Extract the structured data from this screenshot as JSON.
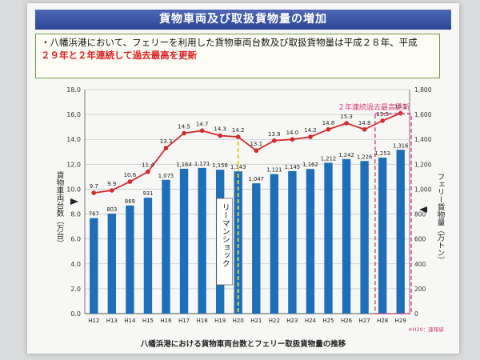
{
  "header": {
    "title": "貨物車両及び取扱貨物量の増加"
  },
  "description": {
    "line1": "・八幡浜港において、フェリーを利用した貨物車両台数及び取扱貨物量は平成２８年、平成",
    "line2_highlight": "２９年と２年連続して過去最高を更新",
    "line2_tail": ""
  },
  "chart_data": {
    "type": "bar",
    "title": "八幡浜港における貨物車両台数とフェリー取扱貨物量の推移",
    "categories": [
      "H12",
      "H13",
      "H14",
      "H15",
      "H16",
      "H17",
      "H18",
      "H19",
      "H20",
      "H21",
      "H22",
      "H23",
      "H24",
      "H25",
      "H26",
      "H27",
      "H28",
      "H29"
    ],
    "series": [
      {
        "type": "bar",
        "axis": "left",
        "color": "#1f6fb8",
        "values": [
          767,
          803,
          869,
          931,
          1075,
          1164,
          1171,
          1156,
          1143,
          1047,
          1121,
          1145,
          1162,
          1212,
          1242,
          1226,
          1253,
          1316
        ]
      },
      {
        "type": "line",
        "axis": "right",
        "color": "#d42a2a",
        "values": [
          9.7,
          9.9,
          10.6,
          11.4,
          13.3,
          14.5,
          14.7,
          14.3,
          14.2,
          13.1,
          13.9,
          14.0,
          14.2,
          14.8,
          15.3,
          14.8,
          15.5,
          16.1
        ]
      }
    ],
    "y_left": {
      "label": "貨物車両台数（万台）",
      "ylim": [
        0,
        18
      ],
      "ticks": [
        "0.0",
        "2.0",
        "4.0",
        "6.0",
        "8.0",
        "10.0",
        "12.0",
        "14.0",
        "16.0",
        "18.0"
      ]
    },
    "y_right": {
      "label": "フェリー貨物量（万トン）",
      "ylim": [
        0,
        1800
      ],
      "ticks": [
        "0",
        "200",
        "400",
        "600",
        "800",
        "1,000",
        "1,200",
        "1,400",
        "1,600",
        "1,800"
      ]
    },
    "grid": true,
    "legend": "none",
    "annotations": {
      "record": "２年連続過去最高更新",
      "lehman": "リーマンショック",
      "note": "※H29：速報値"
    }
  }
}
